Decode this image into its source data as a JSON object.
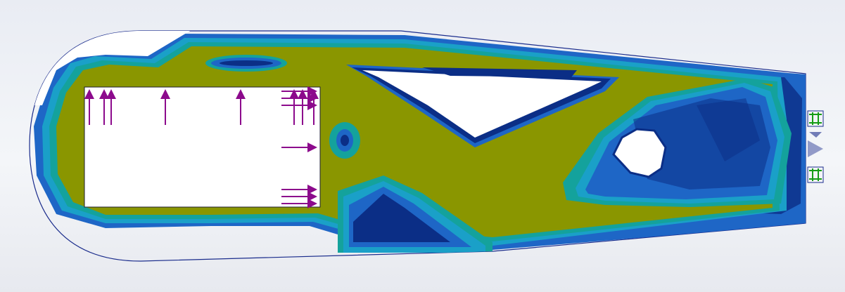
{
  "viewport": {
    "background_top": "#e9ecf3",
    "background_bottom": "#e7e9ef"
  },
  "colors": {
    "design_space_outline": "#1a2c8c",
    "density_high": "#8a9600",
    "density_mid_high": "#14a29c",
    "density_mid": "#1aa0c8",
    "density_low": "#1e66c6",
    "density_lowest": "#0b2e86",
    "load_arrow": "#8c0a8c",
    "fixture": "#169c16"
  },
  "symbols": {
    "loads": "force-arrow-icon",
    "fixtures": "fixed-geometry-icon"
  }
}
